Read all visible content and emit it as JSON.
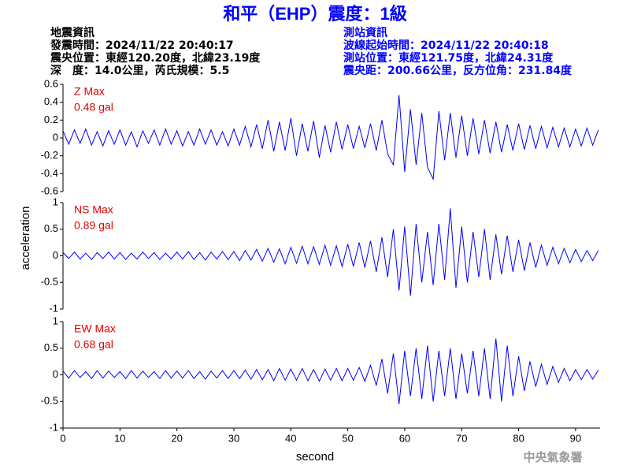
{
  "title": "和平（EHP）震度：1級",
  "event_info": {
    "heading": "地震資訊",
    "lines": [
      "發震時間：2024/11/22 20:40:17",
      "震央位置：東經120.20度，北緯23.19度",
      "深　度：14.0公里，芮氏規模：5.5"
    ]
  },
  "station_info": {
    "heading": "測站資訊",
    "lines": [
      "波線起始時間：2024/11/22 20:40:18",
      "測站位置：東經121.75度，北緯24.31度",
      "震央距：200.66公里，反方位角：231.84度"
    ]
  },
  "y_label": "acceleration",
  "x_label": "second",
  "footer": "中央氣象署",
  "chart_data": [
    {
      "type": "line",
      "label": "Z Max",
      "max_label": "0.48 gal",
      "x": [
        0,
        1,
        2,
        3,
        4,
        5,
        6,
        7,
        8,
        9,
        10,
        11,
        12,
        13,
        14,
        15,
        16,
        17,
        18,
        19,
        20,
        21,
        22,
        23,
        24,
        25,
        26,
        27,
        28,
        29,
        30,
        31,
        32,
        33,
        34,
        35,
        36,
        37,
        38,
        39,
        40,
        41,
        42,
        43,
        44,
        45,
        46,
        47,
        48,
        49,
        50,
        51,
        52,
        53,
        54,
        55,
        56,
        57,
        58,
        59,
        60,
        61,
        62,
        63,
        64,
        65,
        66,
        67,
        68,
        69,
        70,
        71,
        72,
        73,
        74,
        75,
        76,
        77,
        78,
        79,
        80,
        81,
        82,
        83,
        84,
        85,
        86,
        87,
        88,
        89,
        90,
        91,
        92,
        93,
        94
      ],
      "series": [
        {
          "color": "#0000ff",
          "values": [
            0.08,
            -0.07,
            0.09,
            -0.06,
            0.1,
            -0.08,
            0.07,
            -0.09,
            0.08,
            -0.07,
            0.09,
            -0.08,
            0.07,
            -0.1,
            0.08,
            -0.06,
            0.09,
            -0.08,
            0.1,
            -0.07,
            0.08,
            -0.09,
            0.07,
            -0.08,
            0.1,
            -0.07,
            0.09,
            -0.08,
            0.07,
            -0.09,
            0.1,
            -0.08,
            0.13,
            -0.1,
            0.15,
            -0.12,
            0.2,
            -0.15,
            0.18,
            -0.14,
            0.22,
            -0.2,
            0.16,
            -0.15,
            0.19,
            -0.22,
            0.14,
            -0.16,
            0.18,
            -0.13,
            0.15,
            -0.12,
            0.13,
            -0.11,
            0.16,
            -0.14,
            0.2,
            -0.18,
            -0.3,
            0.48,
            -0.38,
            0.32,
            -0.3,
            0.28,
            -0.33,
            -0.46,
            0.3,
            -0.25,
            0.28,
            -0.22,
            0.25,
            -0.2,
            0.22,
            -0.18,
            0.2,
            -0.17,
            0.18,
            -0.16,
            0.15,
            -0.14,
            0.16,
            -0.13,
            0.14,
            -0.12,
            0.13,
            -0.11,
            0.12,
            -0.1,
            0.11,
            -0.1,
            0.1,
            -0.09,
            0.11,
            -0.08,
            0.09
          ]
        }
      ],
      "xlim": [
        0,
        94.3
      ],
      "ylim": [
        -0.6,
        0.6
      ],
      "yticks": [
        0.6,
        0.4,
        0.2,
        0,
        -0.2,
        -0.4,
        -0.6
      ]
    },
    {
      "type": "line",
      "label": "NS Max",
      "max_label": "0.89 gal",
      "x": [
        0,
        1,
        2,
        3,
        4,
        5,
        6,
        7,
        8,
        9,
        10,
        11,
        12,
        13,
        14,
        15,
        16,
        17,
        18,
        19,
        20,
        21,
        22,
        23,
        24,
        25,
        26,
        27,
        28,
        29,
        30,
        31,
        32,
        33,
        34,
        35,
        36,
        37,
        38,
        39,
        40,
        41,
        42,
        43,
        44,
        45,
        46,
        47,
        48,
        49,
        50,
        51,
        52,
        53,
        54,
        55,
        56,
        57,
        58,
        59,
        60,
        61,
        62,
        63,
        64,
        65,
        66,
        67,
        68,
        69,
        70,
        71,
        72,
        73,
        74,
        75,
        76,
        77,
        78,
        79,
        80,
        81,
        82,
        83,
        84,
        85,
        86,
        87,
        88,
        89,
        90,
        91,
        92,
        93,
        94
      ],
      "series": [
        {
          "color": "#0000ff",
          "values": [
            0.06,
            -0.05,
            0.07,
            -0.06,
            0.05,
            -0.07,
            0.06,
            -0.05,
            0.07,
            -0.06,
            0.06,
            -0.07,
            0.05,
            -0.06,
            0.07,
            -0.05,
            0.06,
            -0.07,
            0.05,
            -0.06,
            0.07,
            -0.06,
            0.08,
            -0.07,
            0.06,
            -0.08,
            0.07,
            -0.06,
            0.08,
            -0.07,
            0.08,
            -0.09,
            0.1,
            -0.08,
            0.12,
            -0.1,
            0.14,
            -0.12,
            0.13,
            -0.15,
            0.16,
            -0.14,
            0.18,
            -0.15,
            0.17,
            -0.16,
            0.2,
            -0.18,
            0.19,
            -0.2,
            0.22,
            -0.2,
            0.25,
            -0.22,
            0.28,
            -0.3,
            0.35,
            -0.4,
            0.5,
            -0.65,
            0.55,
            -0.75,
            0.6,
            -0.5,
            0.45,
            -0.55,
            0.6,
            -0.45,
            0.89,
            -0.6,
            0.55,
            -0.5,
            0.45,
            -0.4,
            0.5,
            -0.45,
            0.4,
            -0.35,
            0.38,
            -0.3,
            0.3,
            -0.28,
            0.25,
            -0.22,
            0.2,
            -0.18,
            0.16,
            -0.15,
            0.14,
            -0.13,
            0.12,
            -0.11,
            0.1,
            -0.09,
            0.1
          ]
        }
      ],
      "xlim": [
        0,
        94.3
      ],
      "ylim": [
        -1,
        1
      ],
      "yticks": [
        1,
        0.5,
        0,
        -0.5,
        -1
      ]
    },
    {
      "type": "line",
      "label": "EW Max",
      "max_label": "0.68 gal",
      "x": [
        0,
        1,
        2,
        3,
        4,
        5,
        6,
        7,
        8,
        9,
        10,
        11,
        12,
        13,
        14,
        15,
        16,
        17,
        18,
        19,
        20,
        21,
        22,
        23,
        24,
        25,
        26,
        27,
        28,
        29,
        30,
        31,
        32,
        33,
        34,
        35,
        36,
        37,
        38,
        39,
        40,
        41,
        42,
        43,
        44,
        45,
        46,
        47,
        48,
        49,
        50,
        51,
        52,
        53,
        54,
        55,
        56,
        57,
        58,
        59,
        60,
        61,
        62,
        63,
        64,
        65,
        66,
        67,
        68,
        69,
        70,
        71,
        72,
        73,
        74,
        75,
        76,
        77,
        78,
        79,
        80,
        81,
        82,
        83,
        84,
        85,
        86,
        87,
        88,
        89,
        90,
        91,
        92,
        93,
        94
      ],
      "series": [
        {
          "color": "#0000ff",
          "values": [
            0.07,
            -0.06,
            0.08,
            -0.05,
            0.06,
            -0.07,
            0.08,
            -0.06,
            0.07,
            -0.05,
            0.06,
            -0.07,
            0.08,
            -0.06,
            0.07,
            -0.05,
            0.06,
            -0.07,
            0.08,
            -0.06,
            0.07,
            -0.06,
            0.08,
            -0.07,
            0.06,
            -0.08,
            0.07,
            -0.06,
            0.08,
            -0.07,
            0.08,
            -0.07,
            0.09,
            -0.08,
            0.1,
            -0.09,
            0.1,
            -0.11,
            0.12,
            -0.1,
            0.11,
            -0.1,
            0.12,
            -0.11,
            0.1,
            -0.12,
            0.11,
            -0.1,
            0.12,
            -0.11,
            0.12,
            -0.1,
            0.14,
            -0.12,
            0.18,
            -0.2,
            0.3,
            -0.35,
            0.4,
            -0.55,
            0.45,
            -0.4,
            0.5,
            -0.45,
            0.55,
            -0.5,
            0.45,
            -0.4,
            0.5,
            -0.45,
            0.4,
            -0.35,
            0.45,
            -0.4,
            0.5,
            -0.45,
            0.68,
            -0.5,
            0.55,
            -0.4,
            0.35,
            -0.3,
            0.25,
            -0.22,
            0.2,
            -0.18,
            0.16,
            -0.14,
            0.12,
            -0.11,
            0.1,
            -0.09,
            0.1,
            -0.08,
            0.09
          ]
        }
      ],
      "xlim": [
        0,
        94.3
      ],
      "ylim": [
        -1,
        1
      ],
      "yticks": [
        1,
        0.5,
        0,
        -0.5,
        -1
      ],
      "xticks": [
        0,
        10,
        20,
        30,
        40,
        50,
        60,
        70,
        80,
        90
      ]
    }
  ]
}
